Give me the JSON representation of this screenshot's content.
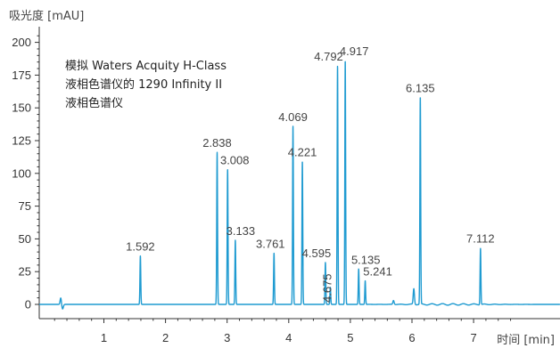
{
  "chart_data": {
    "type": "line",
    "ylabel": "吸光度 [mAU]",
    "xlabel": "时间 [min]",
    "xlim": [
      0,
      7.8
    ],
    "ylim": [
      -8,
      210
    ],
    "xticks": [
      1,
      2,
      3,
      4,
      5,
      6,
      7
    ],
    "yticks": [
      0,
      25,
      50,
      75,
      100,
      125,
      150,
      175,
      200
    ],
    "grid": false,
    "color": "#1f9bd1",
    "annotation": [
      "模拟 Waters Acquity H-Class",
      "液相色谱仪的 1290 Infinity II",
      "液相色谱仪"
    ],
    "peaks": [
      {
        "label": "1.592",
        "x": 1.592,
        "y": 37
      },
      {
        "label": "2.838",
        "x": 2.838,
        "y": 116
      },
      {
        "label": "3.008",
        "x": 3.008,
        "y": 103
      },
      {
        "label": "3.133",
        "x": 3.133,
        "y": 49
      },
      {
        "label": "3.761",
        "x": 3.761,
        "y": 39
      },
      {
        "label": "4.069",
        "x": 4.069,
        "y": 136
      },
      {
        "label": "4.221",
        "x": 4.221,
        "y": 109
      },
      {
        "label": "4.595",
        "x": 4.595,
        "y": 32
      },
      {
        "label": "4.675",
        "x": 4.675,
        "y": 13
      },
      {
        "label": "4.792",
        "x": 4.792,
        "y": 182
      },
      {
        "label": "4.917",
        "x": 4.917,
        "y": 186
      },
      {
        "label": "5.135",
        "x": 5.135,
        "y": 27
      },
      {
        "label": "5.241",
        "x": 5.241,
        "y": 18
      },
      {
        "label": "6.135",
        "x": 6.135,
        "y": 158
      },
      {
        "label": "7.112",
        "x": 7.112,
        "y": 43
      }
    ],
    "minor_peaks": [
      {
        "x": 0.3,
        "y": 5
      },
      {
        "x": 5.7,
        "y": 3
      },
      {
        "x": 6.03,
        "y": 12
      }
    ]
  }
}
